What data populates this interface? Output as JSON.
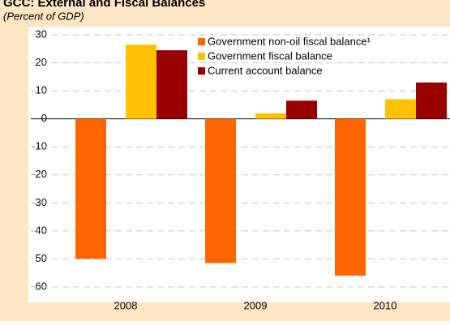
{
  "chart_data": {
    "type": "bar",
    "title": "GCC: External and Fiscal Balances",
    "subtitle": "(Percent of GDP)",
    "categories": [
      "2008",
      "2009",
      "2010"
    ],
    "series": [
      {
        "name": "Government non-oil  fiscal balance¹",
        "color": "#ff6600",
        "values": [
          -50,
          -51.5,
          -56
        ]
      },
      {
        "name": "Government fiscal balance",
        "color": "#ffc000",
        "values": [
          26.5,
          2,
          7
        ]
      },
      {
        "name": "Current account balance",
        "color": "#990000",
        "values": [
          24.5,
          6.5,
          13
        ]
      }
    ],
    "ylim": [
      -60,
      30
    ],
    "yticks": [
      -60,
      -50,
      -40,
      -30,
      -20,
      -10,
      0,
      10,
      20,
      30
    ],
    "grid": true
  }
}
